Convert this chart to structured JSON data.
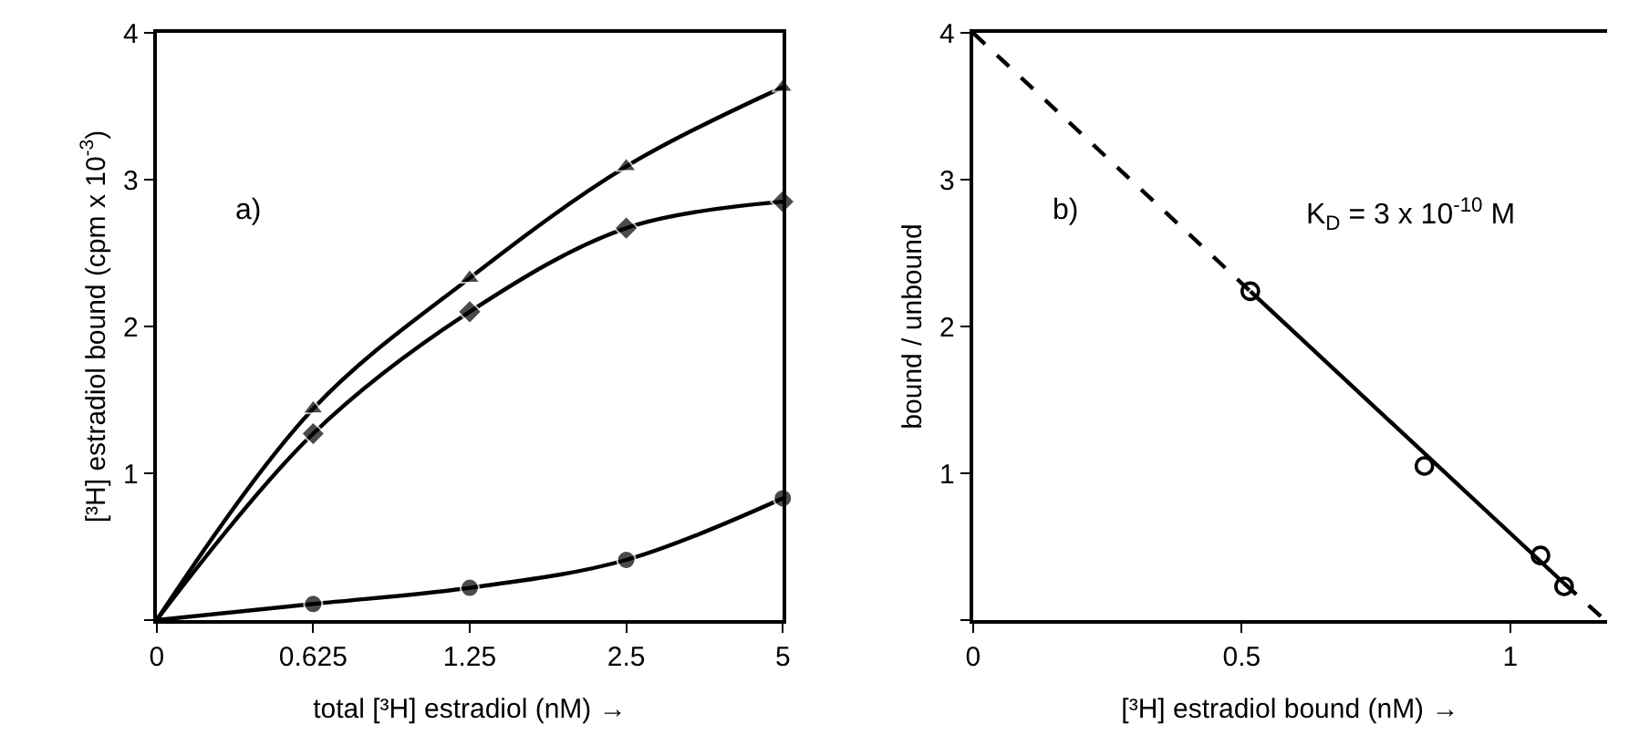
{
  "chart_data": [
    {
      "type": "line",
      "xlabel": "total [³H] estradiol (nM) →",
      "ylabel": "[³H] estradiol bound (cpm x 10$^{-3}$)",
      "annotations": [
        "a)"
      ],
      "categories": [
        "0",
        "0.625",
        "1.25",
        "2.5",
        "5"
      ],
      "ylim": [
        0,
        4
      ],
      "yticks": [
        {
          "value": 0,
          "label": null
        },
        1,
        2,
        3,
        4
      ],
      "line_style": "solid",
      "series": [
        {
          "color": "#000000",
          "marker": "triangle",
          "values": [
            0,
            1.44,
            2.33,
            3.09,
            3.63
          ]
        },
        {
          "color": "#000000",
          "marker": "diamond",
          "values": [
            0,
            1.27,
            2.1,
            2.67,
            2.85
          ]
        },
        {
          "color": "#000000",
          "marker": "circle",
          "values": [
            0,
            0.11,
            0.22,
            0.41,
            0.83
          ]
        }
      ]
    },
    {
      "type": "scatter",
      "xlabel": "[³H] estradiol bound (nM) →",
      "ylabel": "bound / unbound",
      "annotations": [
        "b)",
        "K$_{D}$ = 3 x 10$^{-10}$ M"
      ],
      "xlim": [
        0,
        1.18
      ],
      "xticks": [
        0,
        0.5,
        1
      ],
      "ylim": [
        0,
        4
      ],
      "yticks": [
        {
          "value": 0,
          "label": null
        },
        1,
        2,
        3,
        4
      ],
      "series": [
        {
          "type": "line",
          "line_style": "dashed",
          "marker": "none",
          "color": "#000000",
          "x": [
            0,
            0.516
          ],
          "values": [
            4,
            2.24
          ]
        },
        {
          "type": "line",
          "line_style": "solid",
          "marker": "none",
          "color": "#000000",
          "x": [
            0.516,
            1.1
          ],
          "values": [
            2.24,
            0.25
          ]
        },
        {
          "type": "line",
          "line_style": "dashed",
          "marker": "none",
          "color": "#000000",
          "x": [
            1.1,
            1.17
          ],
          "values": [
            0.25,
            0.02
          ]
        },
        {
          "type": "scatter",
          "marker": "circle",
          "color": "#000000",
          "x": [
            0.516,
            0.84,
            1.056,
            1.1
          ],
          "values": [
            2.24,
            1.05,
            0.44,
            0.23
          ]
        }
      ]
    }
  ]
}
